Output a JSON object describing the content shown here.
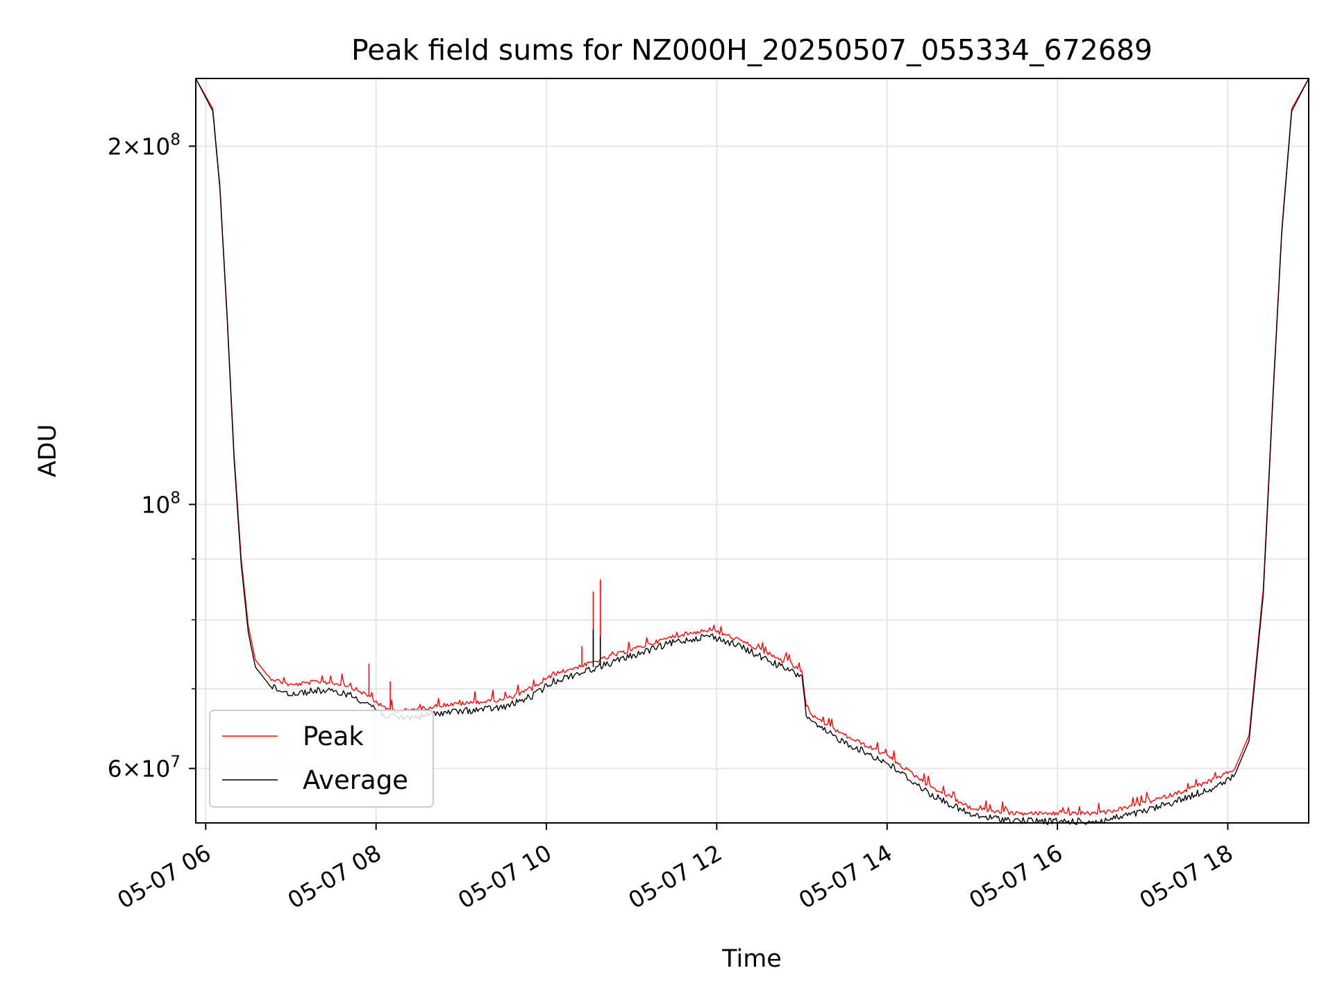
{
  "chart_data": {
    "type": "line",
    "title": "Peak field sums for NZ000H_20250507_055334_672689",
    "xlabel": "Time",
    "ylabel": "ADU",
    "y_scale": "log",
    "grid": true,
    "legend_position": "lower-left",
    "xlim": [
      "2025-05-07 05:53",
      "2025-05-07 18:57"
    ],
    "ylim": [
      54000000,
      228000000
    ],
    "x_ticks": [
      {
        "value": "2025-05-07 06:00",
        "label": "05-07 06"
      },
      {
        "value": "2025-05-07 08:00",
        "label": "05-07 08"
      },
      {
        "value": "2025-05-07 10:00",
        "label": "05-07 10"
      },
      {
        "value": "2025-05-07 12:00",
        "label": "05-07 12"
      },
      {
        "value": "2025-05-07 14:00",
        "label": "05-07 14"
      },
      {
        "value": "2025-05-07 16:00",
        "label": "05-07 16"
      },
      {
        "value": "2025-05-07 18:00",
        "label": "05-07 18"
      }
    ],
    "y_ticks_major": [
      {
        "value": 60000000,
        "mantissa": "6",
        "exponent": "7"
      },
      {
        "value": 100000000,
        "mantissa": "",
        "exponent": "8"
      },
      {
        "value": 200000000,
        "mantissa": "2",
        "exponent": "8"
      }
    ],
    "y_ticks_minor": [
      70000000,
      80000000,
      90000000
    ],
    "series": [
      {
        "name": "Peak",
        "color": "#ff0000",
        "x": [
          "2025-05-07 05:53",
          "2025-05-07 06:05",
          "2025-05-07 06:10",
          "2025-05-07 06:15",
          "2025-05-07 06:20",
          "2025-05-07 06:25",
          "2025-05-07 06:30",
          "2025-05-07 06:35",
          "2025-05-07 06:45",
          "2025-05-07 07:00",
          "2025-05-07 07:20",
          "2025-05-07 07:40",
          "2025-05-07 07:55",
          "2025-05-07 08:05",
          "2025-05-07 08:15",
          "2025-05-07 08:30",
          "2025-05-07 08:45",
          "2025-05-07 09:00",
          "2025-05-07 09:30",
          "2025-05-07 09:50",
          "2025-05-07 10:05",
          "2025-05-07 10:30",
          "2025-05-07 11:00",
          "2025-05-07 11:30",
          "2025-05-07 11:55",
          "2025-05-07 12:15",
          "2025-05-07 12:40",
          "2025-05-07 13:00",
          "2025-05-07 13:03",
          "2025-05-07 13:10",
          "2025-05-07 13:30",
          "2025-05-07 14:00",
          "2025-05-07 14:30",
          "2025-05-07 15:00",
          "2025-05-07 15:30",
          "2025-05-07 16:00",
          "2025-05-07 16:30",
          "2025-05-07 17:00",
          "2025-05-07 17:30",
          "2025-05-07 17:55",
          "2025-05-07 18:05",
          "2025-05-07 18:15",
          "2025-05-07 18:25",
          "2025-05-07 18:32",
          "2025-05-07 18:38",
          "2025-05-07 18:45",
          "2025-05-07 18:57"
        ],
        "y": [
          228000000,
          215000000,
          185000000,
          145000000,
          110000000,
          90000000,
          79000000,
          74000000,
          71500000,
          70500000,
          71000000,
          70500000,
          69000000,
          67500000,
          67000000,
          67300000,
          67800000,
          68000000,
          68500000,
          70000000,
          72000000,
          73500000,
          75500000,
          77500000,
          78500000,
          77000000,
          74500000,
          72500000,
          67500000,
          66000000,
          64000000,
          61500000,
          58000000,
          55500000,
          55000000,
          55000000,
          55000000,
          56000000,
          57500000,
          59000000,
          60000000,
          64000000,
          85000000,
          125000000,
          170000000,
          215000000,
          228000000
        ],
        "spikes": [
          {
            "x": "2025-05-07 07:55",
            "y": 73500000
          },
          {
            "x": "2025-05-07 08:10",
            "y": 71000000
          },
          {
            "x": "2025-05-07 10:25",
            "y": 76000000
          },
          {
            "x": "2025-05-07 10:33",
            "y": 84500000
          },
          {
            "x": "2025-05-07 10:38",
            "y": 86500000
          }
        ]
      },
      {
        "name": "Average",
        "color": "#000000",
        "x": [
          "2025-05-07 05:53",
          "2025-05-07 06:05",
          "2025-05-07 06:10",
          "2025-05-07 06:15",
          "2025-05-07 06:20",
          "2025-05-07 06:25",
          "2025-05-07 06:30",
          "2025-05-07 06:35",
          "2025-05-07 06:45",
          "2025-05-07 07:00",
          "2025-05-07 07:20",
          "2025-05-07 07:40",
          "2025-05-07 07:55",
          "2025-05-07 08:05",
          "2025-05-07 08:15",
          "2025-05-07 08:30",
          "2025-05-07 08:45",
          "2025-05-07 09:00",
          "2025-05-07 09:30",
          "2025-05-07 09:50",
          "2025-05-07 10:05",
          "2025-05-07 10:30",
          "2025-05-07 11:00",
          "2025-05-07 11:30",
          "2025-05-07 11:55",
          "2025-05-07 12:15",
          "2025-05-07 12:40",
          "2025-05-07 13:00",
          "2025-05-07 13:03",
          "2025-05-07 13:10",
          "2025-05-07 13:30",
          "2025-05-07 14:00",
          "2025-05-07 14:30",
          "2025-05-07 15:00",
          "2025-05-07 15:30",
          "2025-05-07 16:00",
          "2025-05-07 16:30",
          "2025-05-07 17:00",
          "2025-05-07 17:30",
          "2025-05-07 17:55",
          "2025-05-07 18:05",
          "2025-05-07 18:15",
          "2025-05-07 18:25",
          "2025-05-07 18:32",
          "2025-05-07 18:38",
          "2025-05-07 18:45",
          "2025-05-07 18:57"
        ],
        "y": [
          228000000,
          214000000,
          184000000,
          144000000,
          109000000,
          89000000,
          78000000,
          73000000,
          70500000,
          69500000,
          70000000,
          69500000,
          68200000,
          66800000,
          66300000,
          66500000,
          67000000,
          67200000,
          67700000,
          69200000,
          71200000,
          72800000,
          74800000,
          76800000,
          77800000,
          76300000,
          73800000,
          71800000,
          66800000,
          65300000,
          63300000,
          60800000,
          57300000,
          54900000,
          54400000,
          54300000,
          54300000,
          55300000,
          56800000,
          58300000,
          59300000,
          63300000,
          84000000,
          124000000,
          169000000,
          214000000,
          228000000
        ],
        "spikes": [
          {
            "x": "2025-05-07 10:33",
            "y": 78500000
          },
          {
            "x": "2025-05-07 10:38",
            "y": 77500000
          }
        ]
      }
    ]
  }
}
